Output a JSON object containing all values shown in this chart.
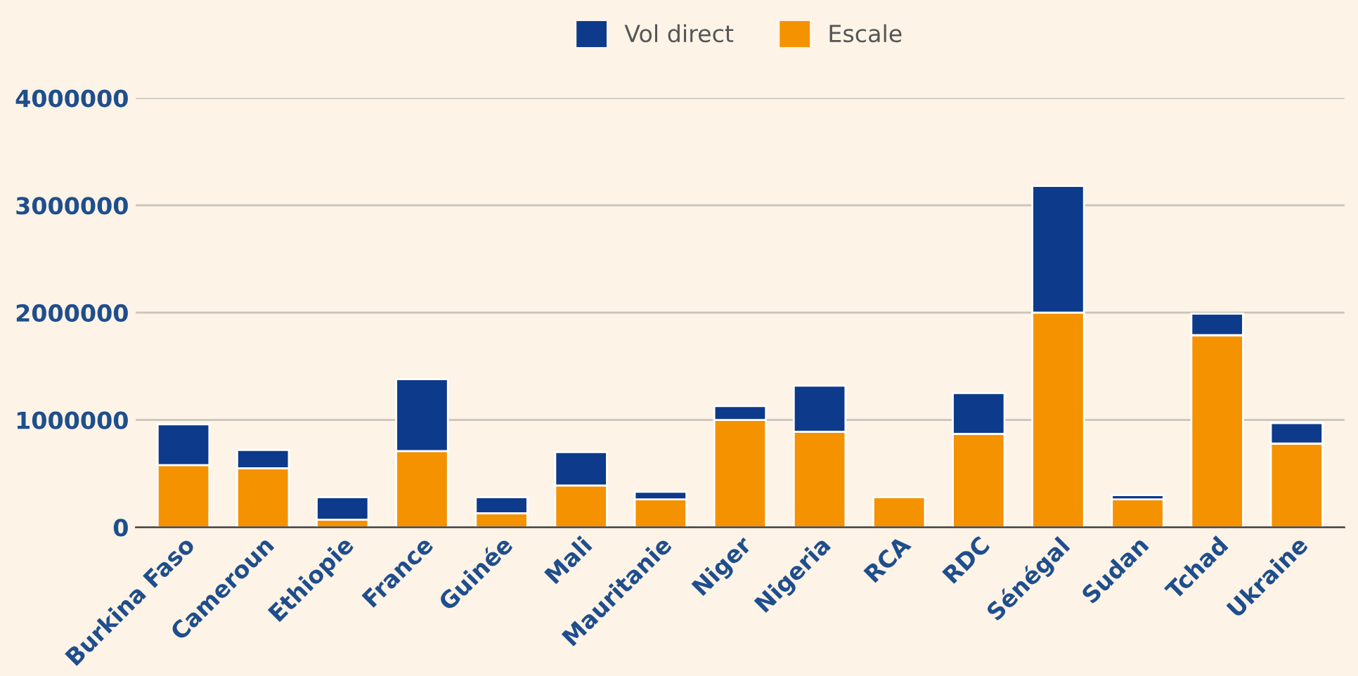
{
  "chart_data": {
    "type": "bar",
    "stacked": true,
    "legend": "top",
    "grid": "y",
    "categories": [
      "Burkina Faso",
      "Cameroun",
      "Ethiopie",
      "France",
      "Guinée",
      "Mali",
      "Mauritanie",
      "Niger",
      "Nigeria",
      "RCA",
      "RDC",
      "Sénégal",
      "Sudan",
      "Tchad",
      "Ukraine"
    ],
    "series": [
      {
        "name": "Escale",
        "color": "#f59200",
        "values": [
          580000,
          550000,
          70000,
          710000,
          130000,
          390000,
          260000,
          1000000,
          890000,
          280000,
          870000,
          2000000,
          260000,
          1790000,
          780000
        ]
      },
      {
        "name": "Vol direct",
        "color": "#0d3a8a",
        "values": [
          380000,
          170000,
          210000,
          670000,
          150000,
          310000,
          70000,
          130000,
          430000,
          null,
          380000,
          1180000,
          40000,
          200000,
          190000
        ]
      }
    ],
    "ylim": [
      0,
      4000000
    ],
    "yticks": [
      0,
      1000000,
      2000000,
      3000000,
      4000000
    ]
  }
}
